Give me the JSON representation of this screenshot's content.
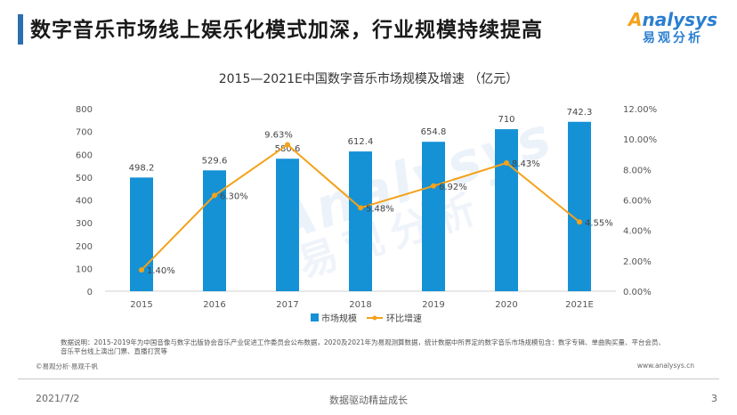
{
  "page": {
    "title": "数字音乐市场线上娱乐化模式加深，行业规模持续提高",
    "logo_en": "nalysys",
    "logo_en_a": "A",
    "logo_cn": "易观分析",
    "watermark_en": "Analysys",
    "watermark_cn": "易观分析"
  },
  "chart_data": {
    "type": "bar",
    "title": "2015—2021E中国数字音乐市场规模及增速 （亿元）",
    "categories": [
      "2015",
      "2016",
      "2017",
      "2018",
      "2019",
      "2020",
      "2021E"
    ],
    "series": [
      {
        "name": "市场规模",
        "type": "bar",
        "axis": "left",
        "values": [
          498.2,
          529.6,
          580.6,
          612.4,
          654.8,
          710,
          742.3
        ],
        "labels": [
          "498.2",
          "529.6",
          "580.6",
          "612.4",
          "654.8",
          "710",
          "742.3"
        ]
      },
      {
        "name": "环比增速",
        "type": "line",
        "axis": "right",
        "values": [
          0.014,
          0.063,
          0.0963,
          0.0548,
          0.0692,
          0.0843,
          0.0455
        ],
        "labels": [
          "1.40%",
          "6.30%",
          "9.63%",
          "5.48%",
          "6.92%",
          "8.43%",
          "4.55%"
        ]
      }
    ],
    "ylim_left": [
      0,
      800
    ],
    "yticks_left": [
      "0",
      "100",
      "200",
      "300",
      "400",
      "500",
      "600",
      "700",
      "800"
    ],
    "ylim_right": [
      0,
      0.12
    ],
    "yticks_right": [
      "0.00%",
      "2.00%",
      "4.00%",
      "6.00%",
      "8.00%",
      "10.00%",
      "12.00%"
    ],
    "grid": false,
    "legend": "bottom",
    "colors": {
      "bar": "#1591d6",
      "line": "#f3a21a",
      "axis": "#d0d0d0",
      "text": "#555555"
    }
  },
  "notes": {
    "line1": "数据说明：2015-2019年为中国音像与数字出版协会音乐产业促进工作委员会公布数据，2020及2021年为易观测算数据，统计数据中所界定的数字音乐市场规模包含：数字专辑、单曲购买量、平台会员、",
    "line2": "音乐平台线上演出门票、直播打赏等",
    "source_left": "©易观分析·易观千帆",
    "source_right": "www.analysys.cn"
  },
  "footer": {
    "date": "2021/7/2",
    "center": "数据驱动精益成长",
    "page": "3"
  }
}
